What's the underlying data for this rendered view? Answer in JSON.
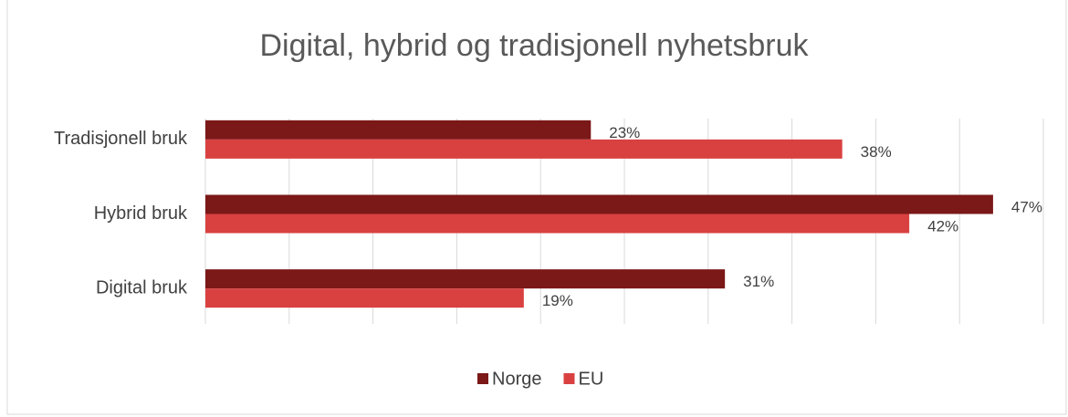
{
  "chart_data": {
    "type": "hbar",
    "title": "Digital, hybrid og tradisjonell nyhetsbruk",
    "categories": [
      "Tradisjonell bruk",
      "Hybrid bruk",
      "Digital bruk"
    ],
    "series": [
      {
        "name": "Norge",
        "color": "#7b1818",
        "values": [
          23,
          47,
          31
        ],
        "value_labels": [
          "23%",
          "47%",
          "31%"
        ]
      },
      {
        "name": "EU",
        "color": "#d94141",
        "values": [
          38,
          42,
          19
        ],
        "value_labels": [
          "38%",
          "42%",
          "19%"
        ]
      }
    ],
    "xlim": [
      0,
      50
    ],
    "xticks": [
      0,
      5,
      10,
      15,
      20,
      25,
      30,
      35,
      40,
      45,
      50
    ],
    "grid": true,
    "legend": "bottom"
  }
}
